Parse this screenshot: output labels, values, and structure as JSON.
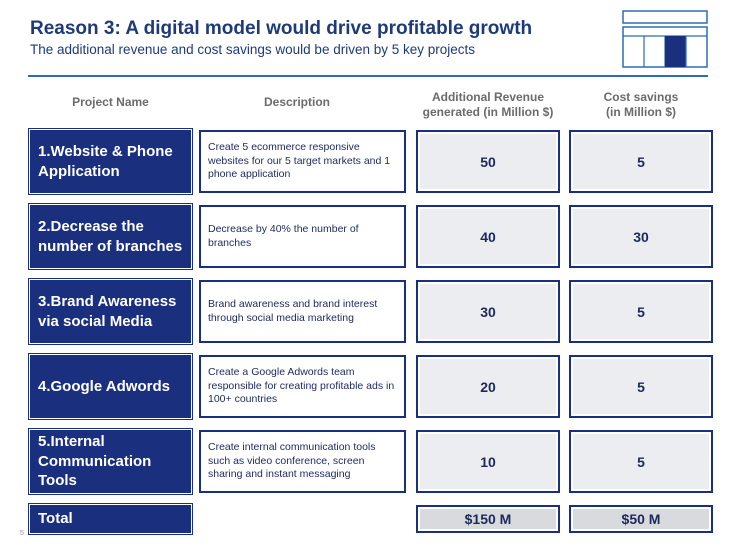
{
  "header": {
    "title": "Reason 3: A digital model would drive profitable growth",
    "subtitle": "The additional revenue and cost savings would be driven by 5 key projects"
  },
  "columns": {
    "project": "Project Name",
    "description": "Description",
    "revenue_line1": "Additional Revenue",
    "revenue_line2": "generated (in Million $)",
    "cost_line1": "Cost savings",
    "cost_line2": "(in Million $)"
  },
  "projects": [
    {
      "name": "1.Website & Phone Application",
      "description": "Create 5 ecommerce responsive websites for our 5 target markets and 1 phone application",
      "revenue": "50",
      "cost": "5"
    },
    {
      "name": "2.Decrease the number of branches",
      "description": "Decrease by 40% the number of branches",
      "revenue": "40",
      "cost": "30"
    },
    {
      "name": "3.Brand Awareness via social Media",
      "description": "Brand awareness and brand interest through social media marketing",
      "revenue": "30",
      "cost": "5"
    },
    {
      "name": "4.Google Adwords",
      "description": "Create a Google Adwords team responsible for creating profitable ads in 100+ countries",
      "revenue": "20",
      "cost": "5"
    },
    {
      "name": "5.Internal Communication Tools",
      "description": "Create internal communication tools such as video conference, screen sharing and instant messaging",
      "revenue": "10",
      "cost": "5"
    }
  ],
  "total": {
    "label": "Total",
    "revenue": "$150 M",
    "cost": "$50 M"
  },
  "footer": {
    "slide_number": "5"
  },
  "colors": {
    "navy": "#1a2f7e",
    "title_blue": "#1f3a78",
    "accent": "#2e6bb5",
    "cell_grey": "#ecedf0"
  }
}
